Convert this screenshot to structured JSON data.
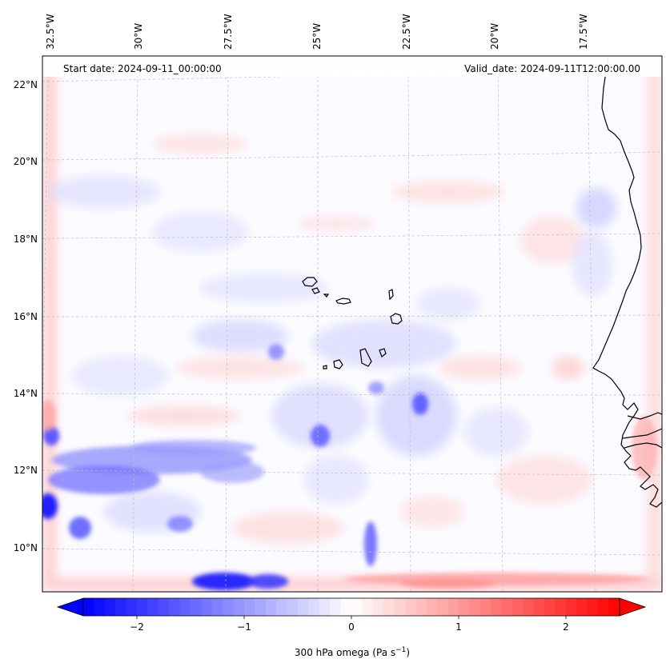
{
  "header": {
    "start_date": "Start date: 2024-09-11_00:00:00",
    "valid_date": "Valid_date: 2024-09-11T12:00:00.00"
  },
  "axes": {
    "lon_labels": [
      "32.5°W",
      "30°W",
      "27.5°W",
      "25°W",
      "22.5°W",
      "20°W",
      "17.5°W"
    ],
    "lat_labels": [
      "22°N",
      "20°N",
      "18°N",
      "16°N",
      "14°N",
      "12°N",
      "10°N"
    ]
  },
  "colorbar": {
    "ticks": [
      "−2",
      "−1",
      "0",
      "1",
      "2"
    ],
    "tick_values": [
      -2,
      -1,
      0,
      1,
      2
    ],
    "range": [
      -2.5,
      2.5
    ],
    "label_main": "300 hPa omega (Pa s",
    "label_sup": "−1",
    "label_end": ")",
    "colormap": "bwr",
    "extend": "both"
  },
  "colors": {
    "negative": "#0000ff",
    "zero": "#ffffff",
    "positive": "#ff0000",
    "coastline": "#000000",
    "gridline": "#bbbbbb"
  }
}
